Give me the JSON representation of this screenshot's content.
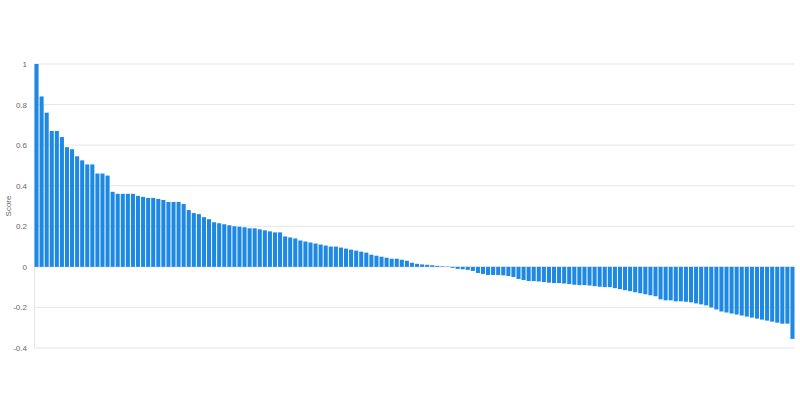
{
  "chart_data": {
    "type": "bar",
    "y_label": "Score",
    "color": "#1e88e5",
    "categories": [
      null,
      null,
      null,
      null,
      null,
      null,
      null,
      null,
      null,
      null,
      null,
      null,
      null,
      null,
      null,
      null,
      null,
      null,
      null,
      null,
      null,
      null,
      null,
      null,
      null,
      null,
      null,
      null,
      null,
      null,
      null,
      null,
      null,
      null,
      null,
      null,
      null,
      null,
      null,
      null,
      null,
      null,
      null,
      null,
      null,
      null,
      null,
      null,
      null,
      null,
      null,
      null,
      null,
      null,
      null,
      null,
      null,
      null,
      null,
      null,
      null,
      null,
      null,
      null,
      null,
      null,
      null,
      null,
      null,
      null,
      null,
      null,
      null,
      null,
      null,
      null,
      null,
      null,
      null,
      null,
      null,
      null,
      null,
      null,
      null,
      null,
      null,
      null,
      null,
      null,
      null,
      null,
      null,
      null,
      null,
      null,
      null,
      null,
      null,
      null,
      null,
      null,
      null,
      null,
      null,
      null,
      null,
      null,
      null,
      null,
      null,
      null,
      null,
      null,
      null,
      null,
      null,
      null,
      null,
      null,
      null,
      null,
      null,
      null,
      null,
      null,
      null,
      null,
      null,
      null,
      null,
      null,
      null,
      null,
      null,
      null,
      null,
      null,
      null,
      null,
      null,
      null,
      null,
      null,
      null,
      null,
      null,
      null,
      null,
      null
    ],
    "values": [
      1,
      0.84,
      0.76,
      0.67,
      0.67,
      0.64,
      0.59,
      0.58,
      0.545,
      0.525,
      0.505,
      0.505,
      0.46,
      0.46,
      0.45,
      0.37,
      0.36,
      0.36,
      0.36,
      0.36,
      0.35,
      0.345,
      0.34,
      0.34,
      0.335,
      0.33,
      0.32,
      0.32,
      0.32,
      0.31,
      0.28,
      0.265,
      0.26,
      0.245,
      0.235,
      0.22,
      0.215,
      0.21,
      0.205,
      0.2,
      0.198,
      0.195,
      0.19,
      0.19,
      0.185,
      0.18,
      0.175,
      0.17,
      0.17,
      0.15,
      0.145,
      0.14,
      0.13,
      0.125,
      0.12,
      0.115,
      0.11,
      0.105,
      0.1,
      0.1,
      0.095,
      0.09,
      0.085,
      0.08,
      0.075,
      0.07,
      0.06,
      0.055,
      0.05,
      0.045,
      0.04,
      0.04,
      0.035,
      0.03,
      0.02,
      0.015,
      0.012,
      0.01,
      0.008,
      0.005,
      0.003,
      0.002,
      -0.005,
      -0.01,
      -0.012,
      -0.015,
      -0.02,
      -0.03,
      -0.035,
      -0.04,
      -0.04,
      -0.04,
      -0.042,
      -0.045,
      -0.05,
      -0.06,
      -0.065,
      -0.07,
      -0.07,
      -0.072,
      -0.075,
      -0.078,
      -0.08,
      -0.08,
      -0.082,
      -0.085,
      -0.088,
      -0.09,
      -0.09,
      -0.092,
      -0.095,
      -0.098,
      -0.1,
      -0.1,
      -0.105,
      -0.11,
      -0.115,
      -0.12,
      -0.125,
      -0.13,
      -0.135,
      -0.14,
      -0.145,
      -0.16,
      -0.165,
      -0.165,
      -0.17,
      -0.17,
      -0.172,
      -0.175,
      -0.18,
      -0.185,
      -0.19,
      -0.2,
      -0.21,
      -0.22,
      -0.225,
      -0.23,
      -0.235,
      -0.24,
      -0.245,
      -0.25,
      -0.255,
      -0.26,
      -0.265,
      -0.27,
      -0.275,
      -0.28,
      -0.28,
      -0.355
    ],
    "ylim": [
      -0.4,
      1
    ],
    "yticks": [
      -0.4,
      -0.2,
      0,
      0.2,
      0.4,
      0.6,
      0.8,
      1
    ],
    "grid": true,
    "tick_labels": "y"
  }
}
